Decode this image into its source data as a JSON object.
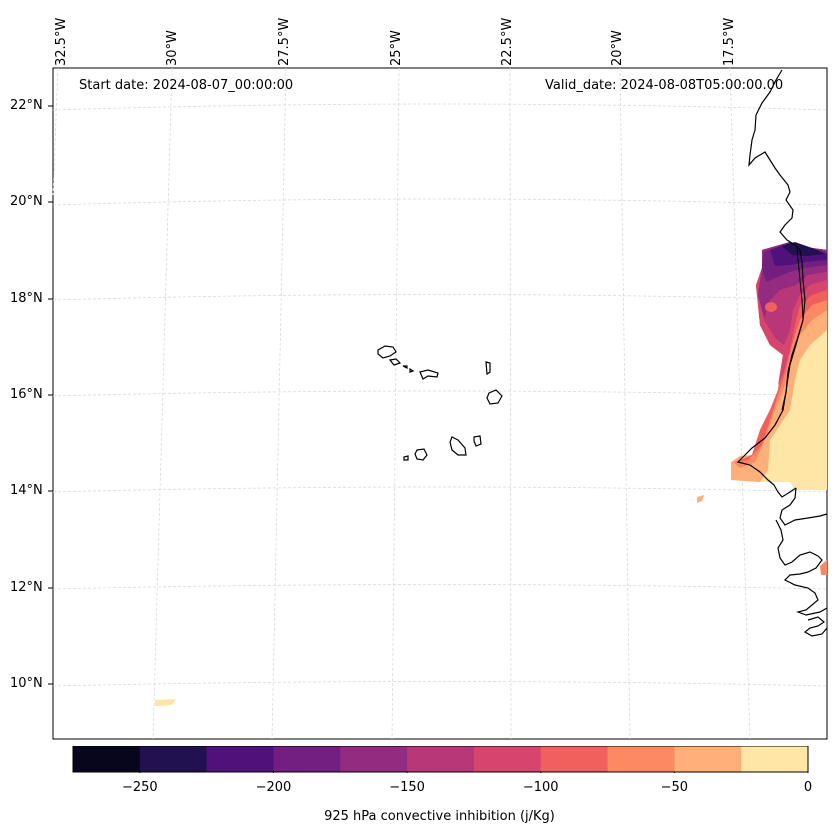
{
  "map": {
    "start_label": "Start date: 2024-08-07_00:00:00",
    "valid_label": "Valid_date: 2024-08-08T05:00:00.00",
    "lon_labels": [
      "32.5°W",
      "30°W",
      "27.5°W",
      "25°W",
      "22.5°W",
      "20°W",
      "17.5°W"
    ],
    "lat_labels": [
      "22°N",
      "20°N",
      "18°N",
      "16°N",
      "14°N",
      "12°N",
      "10°N"
    ],
    "gridline_color": "#d9d9d9",
    "coastline_color": "#000000"
  },
  "colorbar": {
    "title": "925 hPa convective inhibition (j/Kg)",
    "ticks": [
      "−250",
      "−200",
      "−150",
      "−100",
      "−50",
      "0"
    ],
    "levels": [
      -275,
      -250,
      -225,
      -200,
      -175,
      -150,
      -125,
      -100,
      -75,
      -50,
      -25,
      0
    ],
    "colors": [
      "#07061c",
      "#221150",
      "#4f127b",
      "#721f81",
      "#932b80",
      "#b73779",
      "#d8456c",
      "#f1605d",
      "#fc8961",
      "#feb078",
      "#fde6a6"
    ],
    "colormap": "magma"
  }
}
